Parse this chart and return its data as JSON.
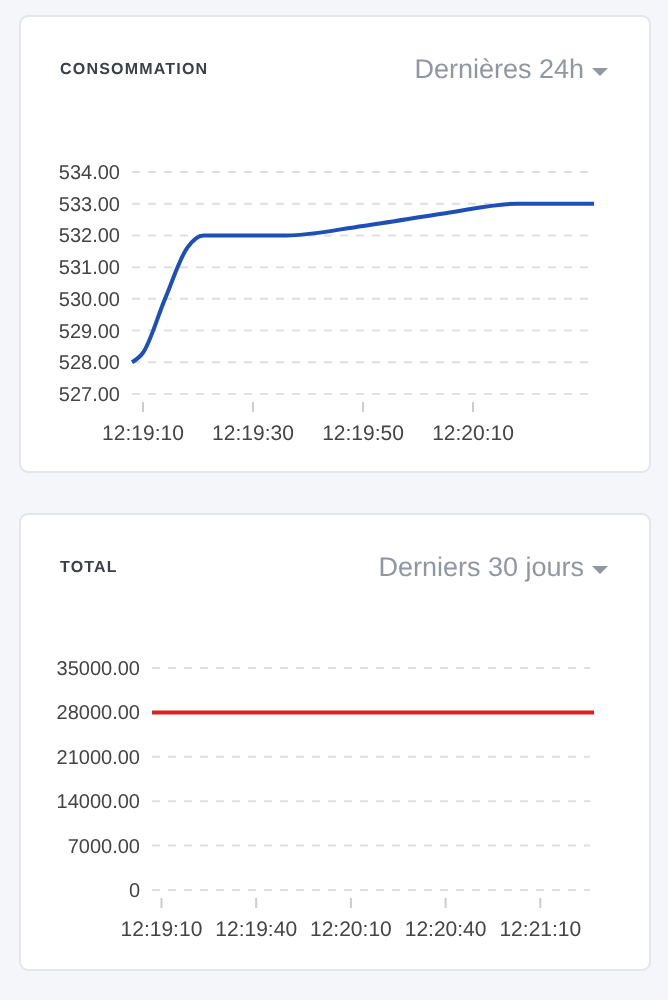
{
  "chart_data": [
    {
      "type": "line",
      "title": "CONSOMMATION",
      "subtitle": "Dernières 24h",
      "x": [
        12.318889,
        12.319444,
        12.320556,
        12.321667,
        12.3225,
        12.326667,
        12.330556,
        12.334722,
        12.338333,
        12.342222
      ],
      "series": [
        {
          "color": "#1e4fb8",
          "values": [
            528,
            528.3,
            530,
            531.6,
            532,
            532,
            532.3,
            532.7,
            533,
            533
          ]
        }
      ],
      "xlim": [
        12.318889,
        12.342222
      ],
      "xticks": [
        {
          "value": 12.319444,
          "label": "12:19:10"
        },
        {
          "value": 12.325,
          "label": "12:19:30"
        },
        {
          "value": 12.330556,
          "label": "12:19:50"
        },
        {
          "value": 12.336111,
          "label": "12:20:10"
        }
      ],
      "ylim": [
        527,
        534
      ],
      "yticks": [
        {
          "value": 527,
          "label": "527.00"
        },
        {
          "value": 528,
          "label": "528.00"
        },
        {
          "value": 529,
          "label": "529.00"
        },
        {
          "value": 530,
          "label": "530.00"
        },
        {
          "value": 531,
          "label": "531.00"
        },
        {
          "value": 532,
          "label": "532.00"
        },
        {
          "value": 533,
          "label": "533.00"
        },
        {
          "value": 534,
          "label": "534.00"
        }
      ],
      "grid": "y",
      "marker": "none",
      "line_style": "solid"
    },
    {
      "type": "line",
      "title": "TOTAL",
      "subtitle": "Derniers 30 jours",
      "x": [
        12.318611,
        12.3575
      ],
      "series": [
        {
          "color": "#e02020",
          "values": [
            28000,
            28000
          ]
        }
      ],
      "xlim": [
        12.318611,
        12.3575
      ],
      "xticks": [
        {
          "value": 12.319444,
          "label": "12:19:10"
        },
        {
          "value": 12.327778,
          "label": "12:19:40"
        },
        {
          "value": 12.336111,
          "label": "12:20:10"
        },
        {
          "value": 12.344444,
          "label": "12:20:40"
        },
        {
          "value": 12.352778,
          "label": "12:21:10"
        }
      ],
      "ylim": [
        0,
        35000
      ],
      "yticks": [
        0,
        {
          "value": 7000,
          "label": "7000.00"
        },
        {
          "value": 14000,
          "label": "14000.00"
        },
        {
          "value": 21000,
          "label": "21000.00"
        },
        {
          "value": 28000,
          "label": "28000.00"
        },
        {
          "value": 35000,
          "label": "35000.00"
        }
      ],
      "grid": "y",
      "marker": "none",
      "line_style": "solid"
    }
  ]
}
